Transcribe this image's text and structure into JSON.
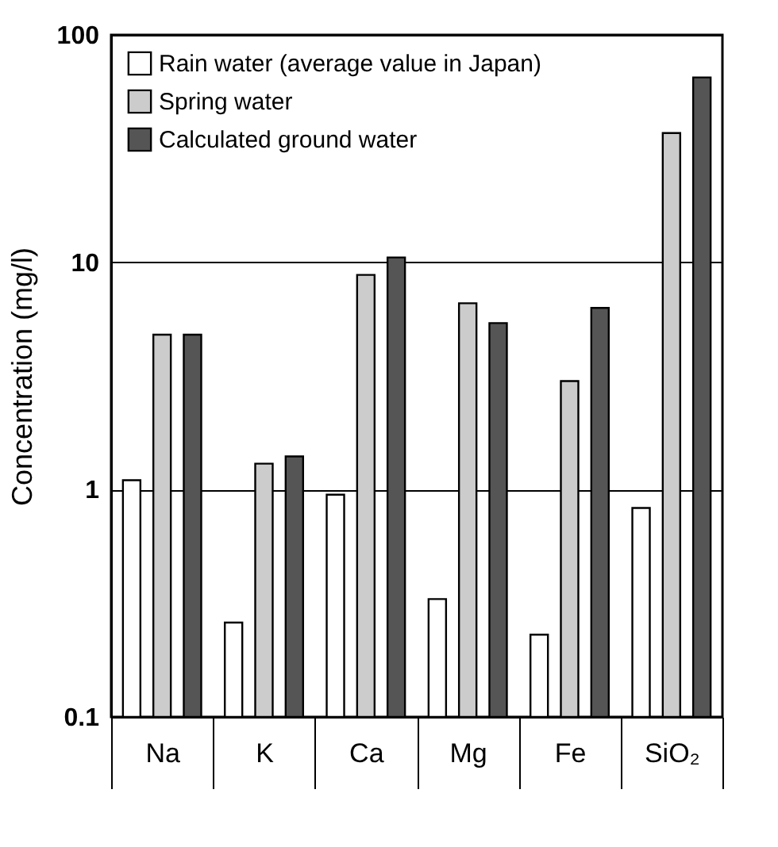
{
  "chart_data": {
    "type": "bar",
    "ylabel": "Concentration (mg/l)",
    "categories": [
      "Na",
      "K",
      "Ca",
      "Mg",
      "Fe",
      "SiO₂"
    ],
    "series": [
      {
        "name": "Rain water (average value in Japan)",
        "color": "#ffffff",
        "values": [
          1.1,
          0.26,
          0.95,
          0.33,
          0.23,
          0.83
        ]
      },
      {
        "name": "Spring water",
        "color": "#cccccc",
        "values": [
          4.8,
          1.3,
          8.8,
          6.6,
          3.0,
          37
        ]
      },
      {
        "name": "Calculated ground water",
        "color": "#555555",
        "values": [
          4.8,
          1.4,
          10.5,
          5.4,
          6.3,
          65
        ]
      }
    ],
    "log": true,
    "ylim": [
      0.1,
      100
    ],
    "yticks": [
      0.1,
      1,
      10,
      100
    ],
    "grid": "y",
    "legend": "top left"
  }
}
